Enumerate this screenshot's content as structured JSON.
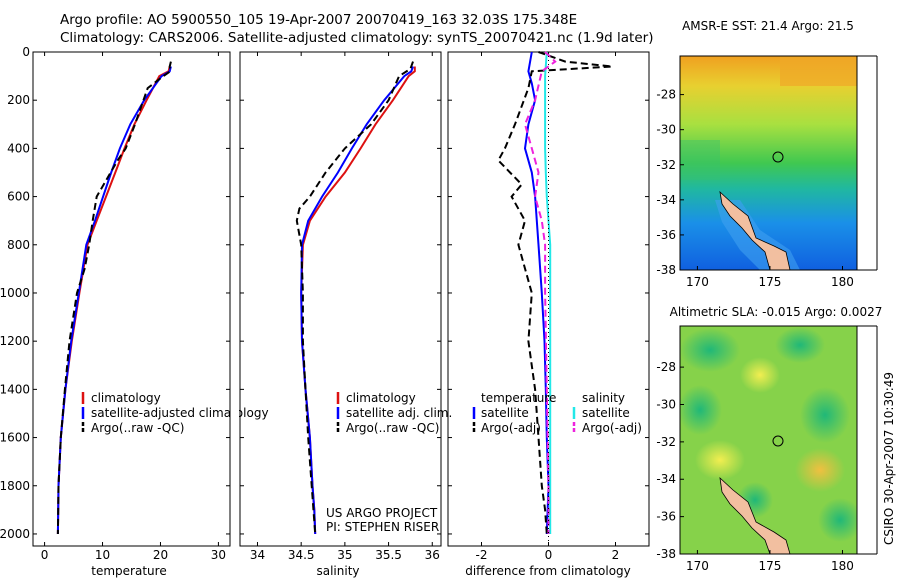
{
  "header": {
    "line1": "Argo profile: AO 5900550_105 19-Apr-2007 20070419_163 32.03S 175.348E",
    "line2": "Climatology: CARS2006. Satellite-adjusted climatology: synTS_20070421.nc (1.9d later)"
  },
  "colors": {
    "climatology": "#dd1111",
    "satellite": "#0000ff",
    "argo": "#000000",
    "salinity_satellite": "#22e8e8",
    "salinity_argo": "#ee22dd",
    "land": "#f2bfa0"
  },
  "credits": {
    "project": "US ARGO PROJECT",
    "pi": "PI: STEPHEN RISER",
    "side_stamp": "CSIRO 30-Apr-2007 10:30:49"
  },
  "chart_data": [
    {
      "type": "line",
      "xlabel": "temperature",
      "ylabel": "",
      "xlim": [
        -2,
        32
      ],
      "ylim": [
        2050,
        0
      ],
      "xticks": [
        0,
        10,
        20,
        30
      ],
      "yticks": [
        0,
        200,
        400,
        600,
        800,
        1000,
        1200,
        1400,
        1600,
        1800,
        2000
      ],
      "legend": [
        "climatology",
        "satellite-adjusted climatology",
        "Argo(..raw -QC)"
      ],
      "series": [
        {
          "name": "climatology",
          "style": "solid",
          "color": "#dd1111",
          "x": [
            21.6,
            21.4,
            19.8,
            17.6,
            15.5,
            13.8,
            12.2,
            10.6,
            9.0,
            7.4,
            6.0,
            4.7,
            3.6,
            2.8,
            2.4,
            2.3
          ],
          "y": [
            60,
            80,
            100,
            200,
            300,
            400,
            500,
            600,
            700,
            800,
            1000,
            1200,
            1400,
            1600,
            1800,
            2000
          ]
        },
        {
          "name": "satellite-adjusted climatology",
          "style": "solid",
          "color": "#0000ff",
          "x": [
            21.8,
            21.6,
            20.2,
            17.2,
            14.8,
            13.0,
            11.5,
            10.1,
            8.7,
            7.2,
            5.9,
            4.6,
            3.6,
            2.8,
            2.4,
            2.3
          ],
          "y": [
            60,
            80,
            100,
            200,
            300,
            400,
            500,
            600,
            700,
            800,
            1000,
            1200,
            1400,
            1600,
            1800,
            2000
          ]
        },
        {
          "name": "Argo(..raw -QC)",
          "style": "dashed",
          "color": "#000000",
          "x": [
            21.8,
            21.6,
            21.7,
            20.5,
            17.8,
            15.6,
            14.0,
            12.6,
            10.2,
            9.0,
            8.3,
            7.7,
            6.9,
            5.6,
            4.3,
            3.5,
            2.8,
            2.4,
            2.3
          ],
          "y": [
            40,
            60,
            80,
            100,
            150,
            300,
            400,
            450,
            550,
            600,
            700,
            800,
            900,
            1000,
            1200,
            1400,
            1600,
            1800,
            2000
          ]
        }
      ]
    },
    {
      "type": "line",
      "xlabel": "salinity",
      "ylabel": "",
      "xlim": [
        33.8,
        36.1
      ],
      "ylim": [
        2050,
        0
      ],
      "xticks": [
        34,
        34.5,
        35,
        35.5,
        36
      ],
      "legend": [
        "climatology",
        "satellite adj. clim.",
        "Argo(..raw -QC)"
      ],
      "series": [
        {
          "name": "climatology",
          "style": "solid",
          "color": "#dd1111",
          "x": [
            35.8,
            35.8,
            35.73,
            35.55,
            35.35,
            35.18,
            35.0,
            34.78,
            34.6,
            34.52,
            34.5,
            34.51,
            34.55,
            34.6,
            34.63,
            34.65,
            34.66
          ],
          "y": [
            60,
            80,
            100,
            200,
            300,
            400,
            500,
            600,
            700,
            800,
            1000,
            1200,
            1400,
            1600,
            1800,
            1900,
            2000
          ]
        },
        {
          "name": "satellite adj. clim.",
          "style": "solid",
          "color": "#0000ff",
          "x": [
            35.78,
            35.76,
            35.68,
            35.45,
            35.25,
            35.08,
            34.92,
            34.74,
            34.58,
            34.51,
            34.5,
            34.51,
            34.55,
            34.6,
            34.63,
            34.65,
            34.66
          ],
          "y": [
            60,
            80,
            100,
            200,
            300,
            400,
            500,
            600,
            700,
            800,
            1000,
            1200,
            1400,
            1600,
            1800,
            1900,
            2000
          ]
        },
        {
          "name": "Argo(..raw -QC)",
          "style": "dashed",
          "color": "#000000",
          "x": [
            35.78,
            35.75,
            35.62,
            35.5,
            35.3,
            35.0,
            34.78,
            34.6,
            34.48,
            34.45,
            34.5,
            34.52,
            34.52,
            34.55,
            34.58,
            34.62,
            34.66
          ],
          "y": [
            40,
            70,
            100,
            200,
            300,
            400,
            500,
            600,
            650,
            700,
            800,
            1000,
            1200,
            1400,
            1600,
            1800,
            2000
          ]
        }
      ]
    },
    {
      "type": "line",
      "xlabel": "difference from climatology",
      "ylabel": "",
      "xlim": [
        -3,
        3
      ],
      "ylim": [
        2050,
        0
      ],
      "xticks": [
        -2,
        0,
        2
      ],
      "legend_groups": [
        {
          "title": "temperature",
          "entries": [
            "satellite",
            "Argo(-adj)"
          ]
        },
        {
          "title": "salinity",
          "entries": [
            "satellite",
            "Argo(-adj)"
          ]
        }
      ],
      "series": [
        {
          "name": "temperature satellite",
          "style": "solid",
          "color": "#0000ff",
          "x": [
            -0.5,
            -0.6,
            -0.5,
            -0.4,
            -0.6,
            -0.7,
            -0.5,
            -0.4,
            -0.35,
            -0.3,
            -0.2,
            -0.12,
            -0.08,
            -0.05,
            0,
            -0.05
          ],
          "y": [
            0,
            80,
            130,
            200,
            300,
            400,
            500,
            600,
            700,
            800,
            1000,
            1200,
            1400,
            1600,
            1800,
            2000
          ]
        },
        {
          "name": "temperature Argo(-adj)",
          "style": "dashed",
          "color": "#000000",
          "x": [
            -0.3,
            0.5,
            1.9,
            -0.5,
            -0.6,
            -1.0,
            -1.3,
            -1.5,
            -0.8,
            -1.1,
            -0.7,
            -0.9,
            -0.5,
            -0.6,
            -0.4,
            -0.3,
            -0.2,
            -0.1,
            -0.05
          ],
          "y": [
            0,
            40,
            60,
            80,
            150,
            300,
            400,
            450,
            550,
            600,
            700,
            800,
            1000,
            1200,
            1400,
            1600,
            1800,
            1900,
            2000
          ]
        },
        {
          "name": "salinity satellite",
          "style": "solid",
          "color": "#22e8e8",
          "x": [
            -0.05,
            -0.1,
            -0.1,
            -0.1,
            -0.1,
            -0.08,
            -0.05,
            0.0,
            0.05,
            0.05,
            0.05,
            0.05,
            0.05,
            0.05,
            0.05
          ],
          "y": [
            0,
            100,
            200,
            300,
            400,
            500,
            600,
            700,
            800,
            1000,
            1200,
            1400,
            1600,
            1800,
            2000
          ]
        },
        {
          "name": "salinity Argo(-adj)",
          "style": "dashed",
          "color": "#ee22dd",
          "x": [
            -0.1,
            0.2,
            -0.2,
            -0.4,
            -0.7,
            -0.5,
            -0.3,
            -0.4,
            -0.2,
            -0.1,
            -0.1,
            -0.05,
            0,
            0
          ],
          "y": [
            0,
            40,
            80,
            200,
            300,
            400,
            500,
            600,
            700,
            800,
            1000,
            1400,
            1800,
            2000
          ]
        }
      ]
    },
    {
      "type": "heatmap",
      "title": "AMSR-E SST: 21.4 Argo: 21.5",
      "xticks": [
        170,
        175,
        180
      ],
      "yticks": [
        -28,
        -30,
        -32,
        -34,
        -36,
        -38
      ],
      "xlim": [
        168.8,
        181
      ],
      "ylim": [
        -38,
        -25.8
      ],
      "marker": {
        "lon": 175.35,
        "lat": -32.03
      }
    },
    {
      "type": "heatmap",
      "title": "Altimetric SLA: -0.015 Argo: 0.0027",
      "xticks": [
        170,
        175,
        180
      ],
      "yticks": [
        -28,
        -30,
        -32,
        -34,
        -36,
        -38
      ],
      "xlim": [
        168.8,
        181
      ],
      "ylim": [
        -38,
        -25.8
      ],
      "marker": {
        "lon": 175.35,
        "lat": -32.03
      }
    }
  ]
}
